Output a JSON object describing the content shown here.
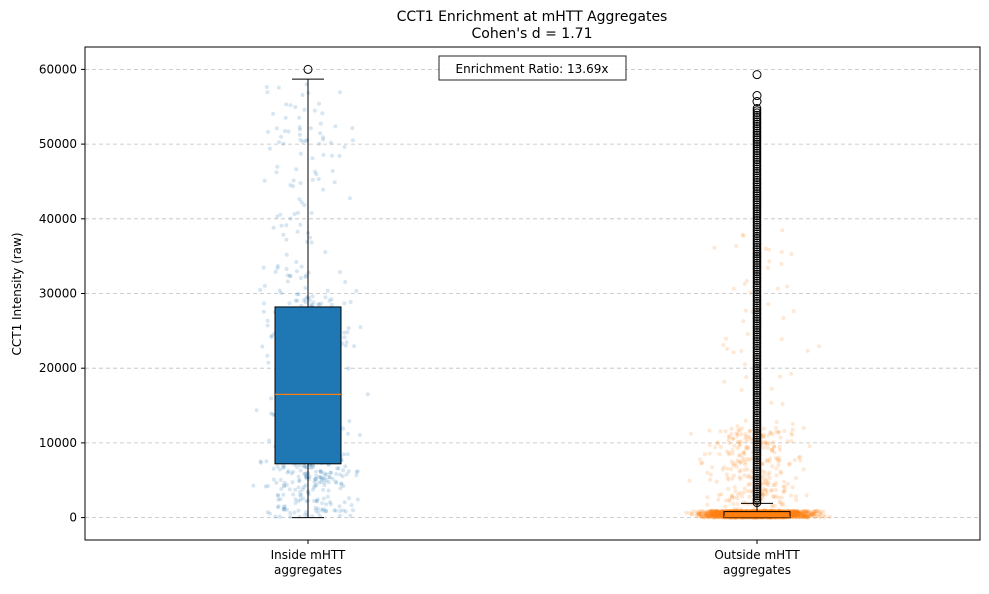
{
  "chart_data": {
    "type": "box",
    "title": "CCT1 Enrichment at mHTT Aggregates",
    "subtitle": "Cohen's d = 1.71",
    "ylabel": "CCT1 Intensity (raw)",
    "xlabel": "",
    "ylim": [
      -3000,
      63000
    ],
    "yticks": [
      0,
      10000,
      20000,
      30000,
      40000,
      50000,
      60000
    ],
    "grid": "y-dashed",
    "annotation": "Enrichment Ratio: 13.69x",
    "groups": [
      {
        "label_lines": [
          "Inside mHTT",
          "aggregates"
        ],
        "color": "#1f77b4",
        "whisker_low": 0,
        "q1": 7200,
        "median": 16500,
        "q3": 28200,
        "whisker_high": 58700,
        "fliers": [
          60000
        ],
        "points_n": 550,
        "points_spread": 0.5,
        "points_hi": 58500,
        "fill": true
      },
      {
        "label_lines": [
          "Outside mHTT",
          "aggregates"
        ],
        "color": "#ff7f0e",
        "whisker_low": 0,
        "q1": 0,
        "median": 100,
        "q3": 800,
        "whisker_high": 1900,
        "fliers": [
          59300,
          56500,
          55700
        ],
        "dense_flier_range": [
          2000,
          55000
        ],
        "points_n": 2500,
        "points_spread": 0.58,
        "points_hi": 38500,
        "fill": false
      }
    ]
  }
}
